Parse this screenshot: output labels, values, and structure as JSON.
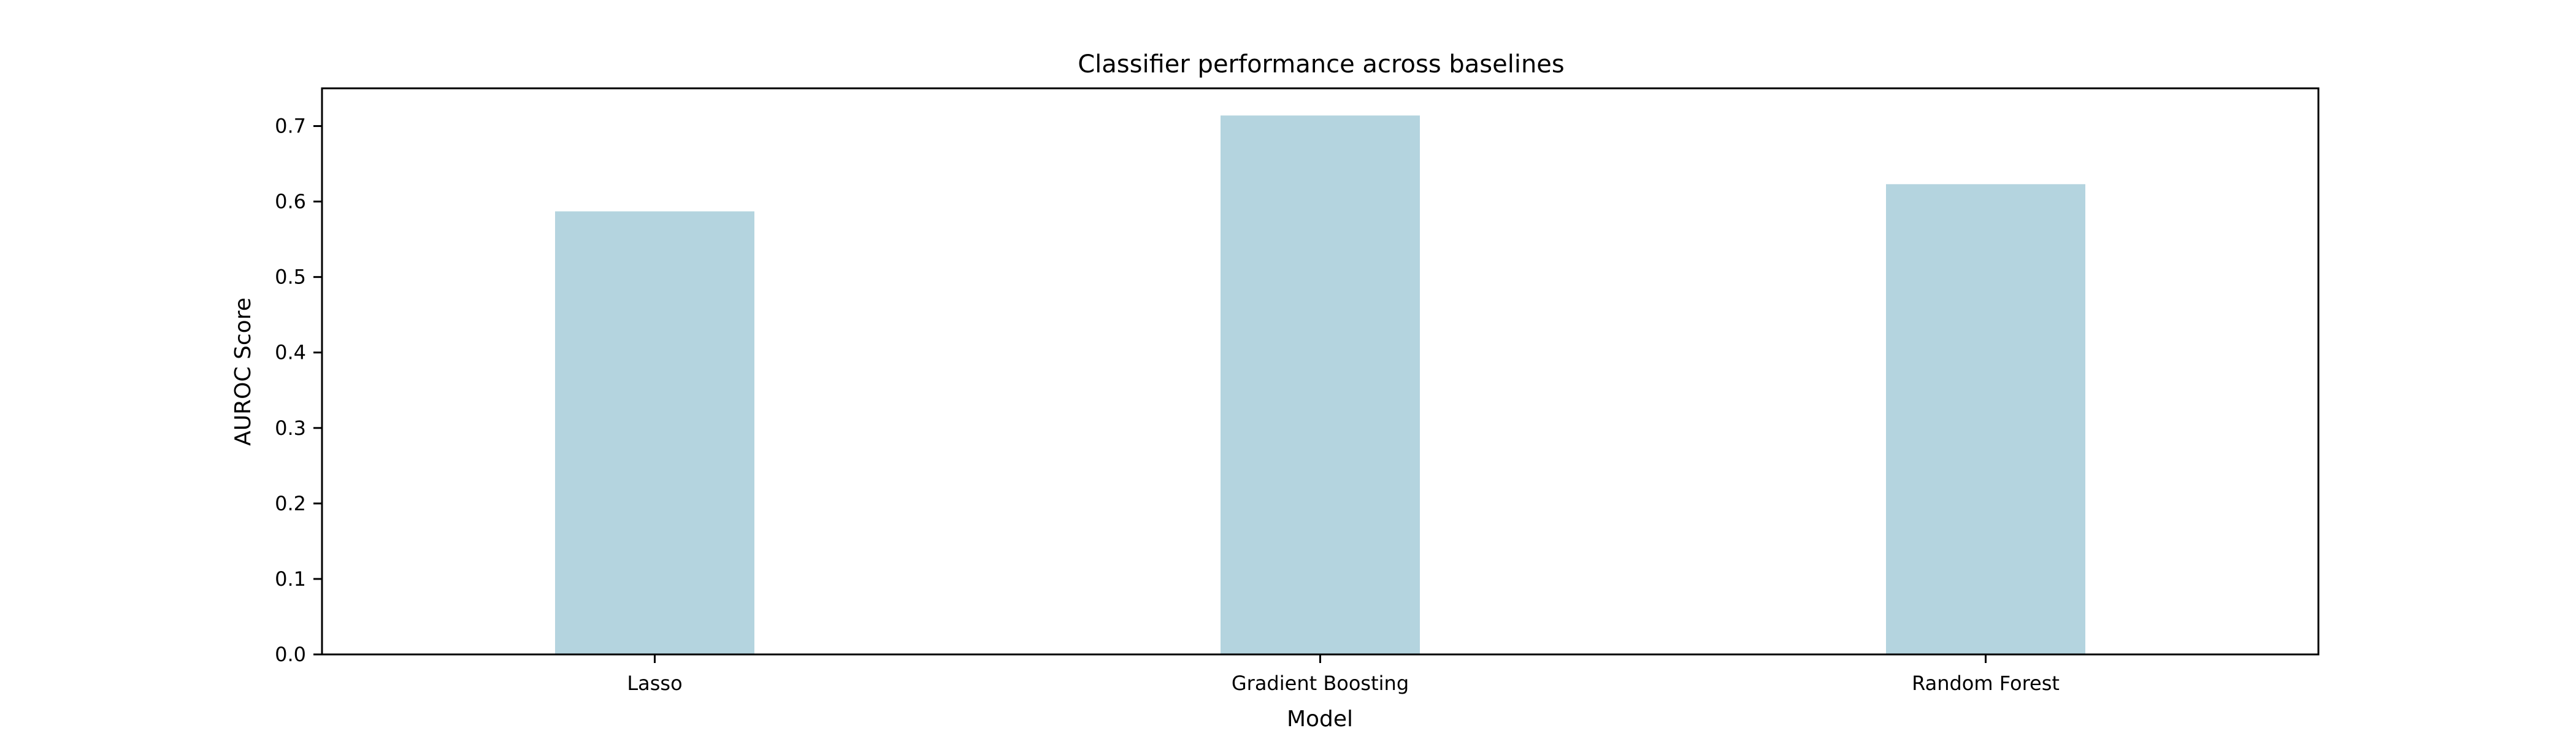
{
  "chart_data": {
    "type": "bar",
    "title": "Classifier performance across baselines",
    "xlabel": "Model",
    "ylabel": "AUROC Score",
    "categories": [
      "Lasso",
      "Gradient Boosting",
      "Random Forest"
    ],
    "values": [
      0.587,
      0.714,
      0.623
    ],
    "ylim": [
      0.0,
      0.75
    ],
    "yticks": [
      "0.0",
      "0.1",
      "0.2",
      "0.3",
      "0.4",
      "0.5",
      "0.6",
      "0.7"
    ],
    "grid": false,
    "legend": "none",
    "bar_color": "#b4d4df"
  }
}
